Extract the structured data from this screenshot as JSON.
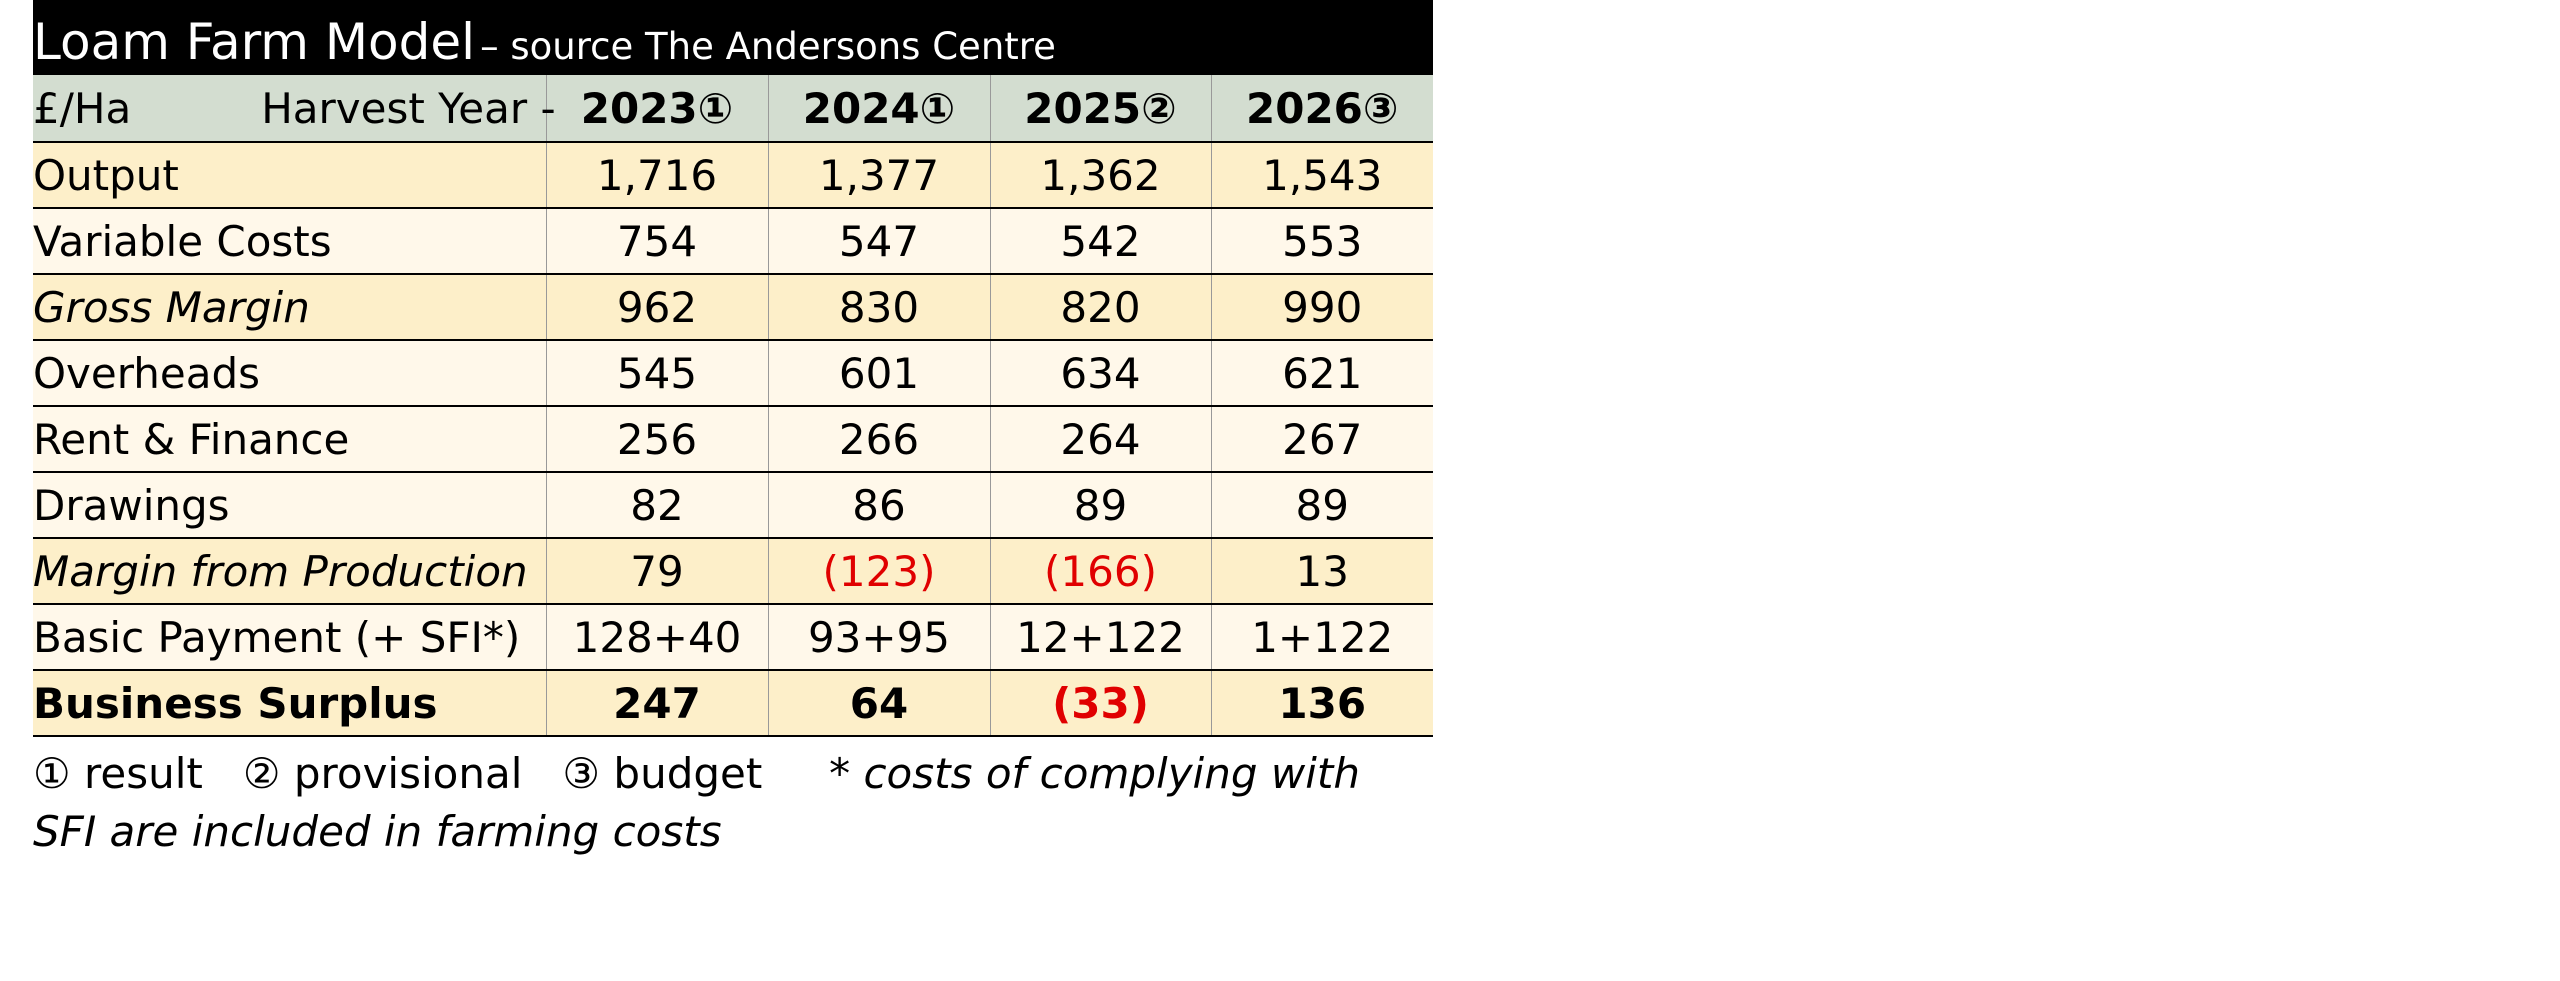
{
  "header": {
    "title": "Loam Farm Model",
    "subtitle": "– source The Andersons Centre"
  },
  "table": {
    "unit": "£/Ha",
    "year_label": "Harvest Year -",
    "columns": [
      "2023①",
      "2024①",
      "2025②",
      "2026③"
    ],
    "rows": [
      {
        "label": "Output",
        "values": [
          "1,716",
          "1,377",
          "1,362",
          "1,543"
        ],
        "shade": "dark",
        "style": "normal"
      },
      {
        "label": "Variable Costs",
        "values": [
          "754",
          "547",
          "542",
          "553"
        ],
        "shade": "light",
        "style": "normal"
      },
      {
        "label": "Gross Margin",
        "values": [
          "962",
          "830",
          "820",
          "990"
        ],
        "shade": "dark",
        "style": "italic"
      },
      {
        "label": "Overheads",
        "values": [
          "545",
          "601",
          "634",
          "621"
        ],
        "shade": "light",
        "style": "normal"
      },
      {
        "label": "Rent & Finance",
        "values": [
          "256",
          "266",
          "264",
          "267"
        ],
        "shade": "light",
        "style": "normal"
      },
      {
        "label": "Drawings",
        "values": [
          "82",
          "86",
          "89",
          "89"
        ],
        "shade": "light",
        "style": "normal"
      },
      {
        "label": "Margin from Production",
        "values": [
          "79",
          "(123)",
          "(166)",
          "13"
        ],
        "shade": "dark",
        "style": "italic"
      },
      {
        "label": "Basic Payment (+ SFI*)",
        "values": [
          "128+40",
          "93+95",
          "12+122",
          "1+122"
        ],
        "shade": "light",
        "style": "normal"
      },
      {
        "label": "Business Surplus",
        "values": [
          "247",
          "64",
          "(33)",
          "136"
        ],
        "shade": "dark",
        "style": "bold"
      }
    ]
  },
  "footnote": {
    "legend": "① result   ② provisional   ③ budget",
    "note": "* costs of complying with SFI are included in farming costs"
  }
}
